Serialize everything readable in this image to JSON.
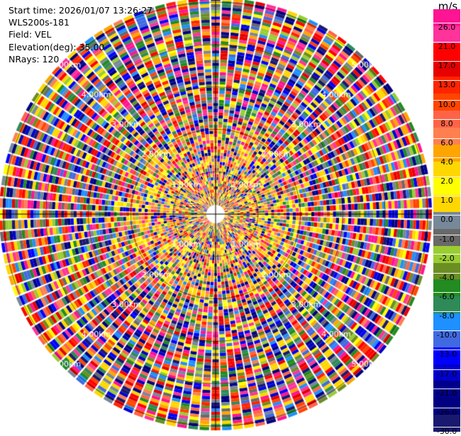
{
  "info": {
    "start_time": "Start time: 2026/01/07 13:26:27",
    "instrument": "WLS200s-181",
    "field": "Field: VEL",
    "elevation": "Elevation(deg): 35.00",
    "nrays": "NRays: 120"
  },
  "range_labels": [
    "1.00km",
    "2.00km",
    "3.00km",
    "4.00km",
    "5.00km"
  ],
  "colorbar": {
    "unit": "m/s",
    "ticks": [
      "26.0",
      "21.0",
      "17.0",
      "13.0",
      "10.0",
      "8.0",
      "6.0",
      "4.0",
      "2.0",
      "1.0",
      "0.0",
      "-1.0",
      "-2.0",
      "-4.0",
      "-6.0",
      "-8.0",
      "-10.0",
      "-13.0",
      "-17.0",
      "-21.0",
      "-26.0",
      "-30.0"
    ],
    "colors": [
      "#ff1493",
      "#ff3399",
      "#ff0000",
      "#e60000",
      "#ff2400",
      "#ff4500",
      "#ff6347",
      "#ff7f50",
      "#ffa500",
      "#ffd700",
      "#ffff00",
      "#ffd700",
      "#778899",
      "#696969",
      "#9acd32",
      "#6b8e23",
      "#228b22",
      "#2e8b57",
      "#1e90ff",
      "#4169e1",
      "#0000ff",
      "#0000cd",
      "#00008b",
      "#000080",
      "#191970"
    ]
  }
}
